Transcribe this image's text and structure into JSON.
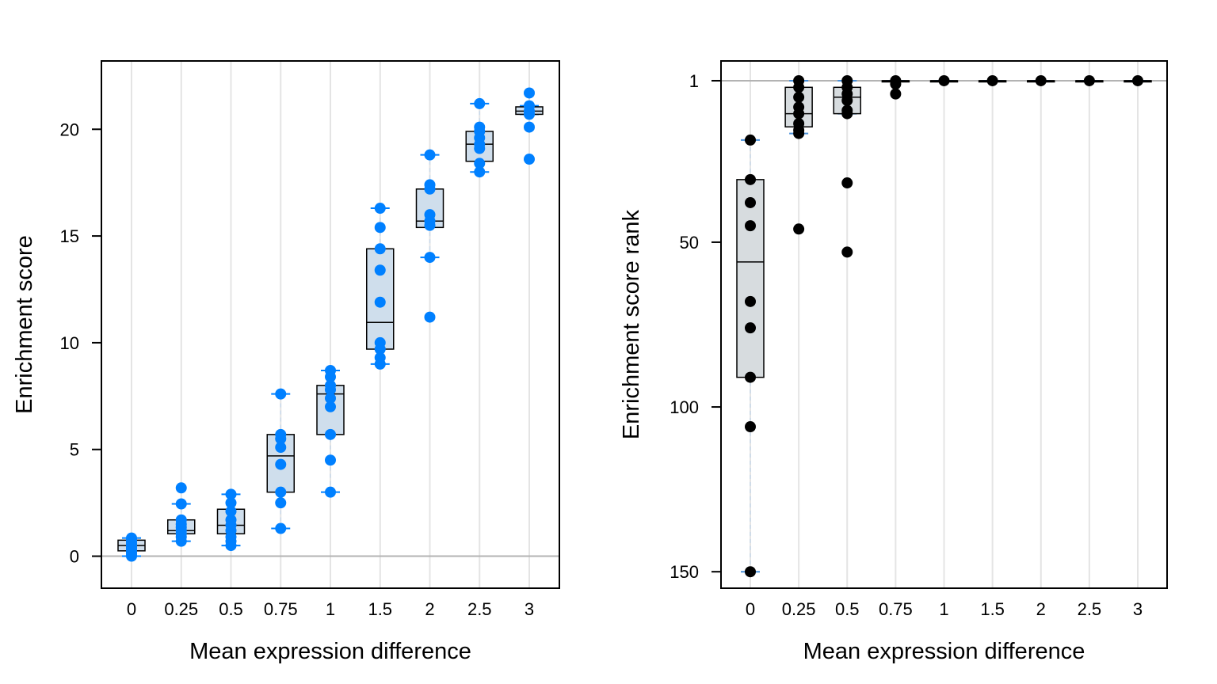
{
  "chart_data": [
    {
      "type": "box",
      "xlabel": "Mean expression difference",
      "ylabel": "Enrichment score",
      "categories": [
        "0",
        "0.25",
        "0.5",
        "0.75",
        "1",
        "1.5",
        "2",
        "2.5",
        "3"
      ],
      "yticks": [
        0,
        5,
        10,
        15,
        20
      ],
      "ylim": [
        -1.5,
        23.2
      ],
      "reference_line": 0,
      "grid": "vertical",
      "point_color": "#0080ff",
      "box_fill": "#cfdeec",
      "boxes": [
        {
          "q1": 0.25,
          "median": 0.5,
          "q3": 0.75,
          "whisker_low": 0.0,
          "whisker_high": 0.85
        },
        {
          "q1": 1.05,
          "median": 1.2,
          "q3": 1.7,
          "whisker_low": 0.7,
          "whisker_high": 2.45
        },
        {
          "q1": 1.05,
          "median": 1.45,
          "q3": 2.2,
          "whisker_low": 0.5,
          "whisker_high": 2.9
        },
        {
          "q1": 3.0,
          "median": 4.7,
          "q3": 5.7,
          "whisker_low": 1.3,
          "whisker_high": 7.6
        },
        {
          "q1": 5.7,
          "median": 7.6,
          "q3": 8.0,
          "whisker_low": 3.0,
          "whisker_high": 8.7
        },
        {
          "q1": 9.7,
          "median": 10.95,
          "q3": 14.4,
          "whisker_low": 9.0,
          "whisker_high": 16.3
        },
        {
          "q1": 15.4,
          "median": 15.7,
          "q3": 17.2,
          "whisker_low": 14.0,
          "whisker_high": 18.8
        },
        {
          "q1": 18.5,
          "median": 19.3,
          "q3": 19.9,
          "whisker_low": 18.0,
          "whisker_high": 21.2
        },
        {
          "q1": 20.7,
          "median": 20.85,
          "q3": 21.05,
          "whisker_low": 20.7,
          "whisker_high": 21.1
        }
      ],
      "points": [
        [
          0.0,
          0.1,
          0.2,
          0.3,
          0.4,
          0.5,
          0.6,
          0.7,
          0.8,
          0.85
        ],
        [
          0.7,
          0.9,
          1.05,
          1.2,
          1.35,
          1.5,
          1.7,
          2.45,
          3.2
        ],
        [
          0.5,
          0.7,
          0.9,
          1.2,
          1.45,
          1.7,
          2.1,
          2.5,
          2.9
        ],
        [
          1.3,
          2.5,
          3.0,
          4.3,
          5.1,
          5.5,
          5.7,
          7.6
        ],
        [
          3.0,
          4.5,
          5.7,
          7.0,
          7.4,
          7.8,
          8.0,
          8.4,
          8.7
        ],
        [
          9.0,
          9.3,
          9.7,
          10.0,
          11.9,
          13.4,
          14.4,
          15.4,
          16.3
        ],
        [
          11.2,
          14.0,
          15.5,
          15.7,
          16.0,
          17.2,
          17.4,
          18.8
        ],
        [
          18.0,
          18.4,
          19.1,
          19.3,
          19.6,
          19.9,
          20.1,
          21.2
        ],
        [
          18.6,
          20.1,
          20.7,
          20.85,
          21.1,
          21.7
        ]
      ]
    },
    {
      "type": "box",
      "xlabel": "Mean expression difference",
      "ylabel": "Enrichment score rank",
      "categories": [
        "0",
        "0.25",
        "0.5",
        "0.75",
        "1",
        "1.5",
        "2",
        "2.5",
        "3"
      ],
      "yticks": [
        1,
        50,
        100,
        150
      ],
      "y_reversed": true,
      "ylim": [
        155,
        -5
      ],
      "reference_line": 1,
      "grid": "vertical",
      "point_color": "#000000",
      "box_fill": "#d7dcdf",
      "boxes": [
        {
          "q1": 31,
          "median": 56,
          "q3": 91,
          "whisker_low": 19,
          "whisker_high": 150
        },
        {
          "q1": 3,
          "median": 11,
          "q3": 15,
          "whisker_low": 1,
          "whisker_high": 17
        },
        {
          "q1": 3,
          "median": 6,
          "q3": 11,
          "whisker_low": 1,
          "whisker_high": 11
        },
        {
          "q1": 1,
          "median": 1,
          "q3": 1,
          "whisker_low": 1,
          "whisker_high": 1
        },
        {
          "q1": 1,
          "median": 1,
          "q3": 1,
          "whisker_low": 1,
          "whisker_high": 1
        },
        {
          "q1": 1,
          "median": 1,
          "q3": 1,
          "whisker_low": 1,
          "whisker_high": 1
        },
        {
          "q1": 1,
          "median": 1,
          "q3": 1,
          "whisker_low": 1,
          "whisker_high": 1
        },
        {
          "q1": 1,
          "median": 1,
          "q3": 1,
          "whisker_low": 1,
          "whisker_high": 1
        },
        {
          "q1": 1,
          "median": 1,
          "q3": 1,
          "whisker_low": 1,
          "whisker_high": 1
        }
      ],
      "points": [
        [
          19,
          31,
          38,
          45,
          68,
          76,
          91,
          106,
          150
        ],
        [
          1,
          3,
          6,
          9,
          11,
          14,
          16,
          17,
          46
        ],
        [
          1,
          3,
          5,
          7,
          10,
          11,
          32,
          53
        ],
        [
          1,
          2,
          5
        ],
        [
          1
        ],
        [
          1
        ],
        [
          1
        ],
        [
          1
        ],
        [
          1
        ]
      ]
    }
  ]
}
